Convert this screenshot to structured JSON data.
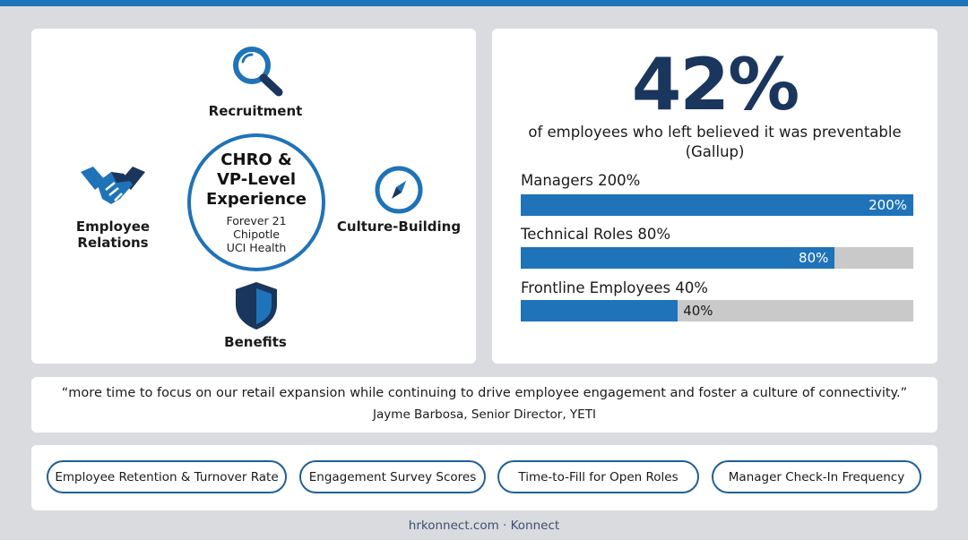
{
  "pillars": {
    "recruitment": "Recruitment",
    "employee_relations_line1": "Employee",
    "employee_relations_line2": "Relations",
    "culture_building": "Culture-Building",
    "benefits": "Benefits"
  },
  "center": {
    "title_line1": "CHRO &",
    "title_line2": "VP-Level",
    "title_line3": "Experience",
    "companies": [
      "Forever 21",
      "Chipotle",
      "UCI Health"
    ]
  },
  "stat": {
    "value": "42%",
    "caption_line1": "of employees who left believed it was preventable",
    "caption_line2": "(Gallup)"
  },
  "chart_data": {
    "type": "bar",
    "categories": [
      "Managers",
      "Technical Roles",
      "Frontline Employees"
    ],
    "values": [
      200,
      80,
      40
    ],
    "labels": [
      "Managers 200%",
      "Technical Roles 80%",
      "Frontline Employees 40%"
    ],
    "value_labels": [
      "200%",
      "80%",
      "40%"
    ],
    "fill_fraction": [
      1.0,
      0.8,
      0.4
    ]
  },
  "quote": {
    "text": "“more time to focus on our retail expansion while continuing to drive employee engagement and foster a culture of connectivity.”",
    "author": "Jayme Barbosa, Senior Director, YETI"
  },
  "metrics": [
    "Employee Retention & Turnover Rate",
    "Engagement Survey Scores",
    "Time-to-Fill for Open Roles",
    "Manager Check-In Frequency"
  ],
  "footer": "hrkonnect.com · Konnect",
  "colors": {
    "accent": "#1f73b8",
    "navy": "#1b365d",
    "track": "#c9c9c9",
    "background": "#d9dbde"
  }
}
